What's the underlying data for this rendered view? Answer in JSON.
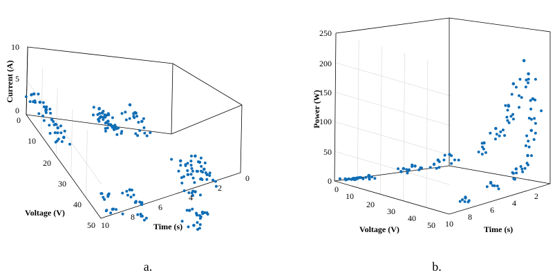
{
  "chart_data": [
    {
      "type": "scatter",
      "panel_label": "a.",
      "xlabel": "Time (s)",
      "ylabel": "Voltage (V)",
      "zlabel": "Current (A)",
      "x_ticks": [
        "10",
        "8",
        "6",
        "4",
        "2",
        "0"
      ],
      "y_ticks": [
        "0",
        "10",
        "20",
        "30",
        "40",
        "50"
      ],
      "z_ticks": [
        "0",
        "5",
        "10"
      ],
      "xlim": [
        0,
        10
      ],
      "ylim": [
        0,
        50
      ],
      "zlim": [
        0,
        10
      ],
      "grid": true,
      "color": "#0f6db5",
      "series": [
        {
          "points": [
            [
              5.0,
              0.0,
              2.3
            ],
            [
              5.0,
              2.0,
              2.3
            ],
            [
              5.0,
              4.0,
              2.3
            ],
            [
              5.0,
              6.0,
              2.3
            ],
            [
              5.0,
              8.0,
              2.3
            ],
            [
              5.0,
              10.0,
              2.3
            ],
            [
              9.5,
              0.0,
              3.2
            ],
            [
              9.5,
              4.0,
              3.2
            ],
            [
              9.5,
              8.0,
              3.2
            ],
            [
              9.5,
              12.0,
              3.1
            ],
            [
              9.5,
              16.0,
              3.1
            ],
            [
              9.5,
              20.0,
              2.9
            ],
            [
              5.0,
              20.0,
              9.0
            ],
            [
              5.0,
              24.0,
              9.0
            ],
            [
              5.0,
              28.0,
              9.0
            ],
            [
              1.5,
              30.0,
              5.5
            ],
            [
              1.5,
              33.0,
              5.5
            ],
            [
              1.5,
              36.0,
              5.4
            ],
            [
              1.5,
              38.0,
              5.2
            ],
            [
              7.0,
              40.0,
              2.0
            ],
            [
              7.0,
              44.0,
              1.4
            ],
            [
              7.0,
              48.0,
              0.6
            ],
            [
              9.0,
              45.0,
              2.2
            ],
            [
              9.0,
              48.0,
              1.0
            ],
            [
              3.5,
              46.0,
              1.8
            ],
            [
              3.5,
              49.0,
              0.5
            ],
            [
              2.5,
              30.0,
              4.5
            ],
            [
              2.5,
              35.0,
              4.0
            ],
            [
              2.5,
              40.0,
              3.0
            ],
            [
              2.5,
              45.0,
              1.5
            ]
          ]
        }
      ]
    },
    {
      "type": "scatter",
      "panel_label": "b.",
      "xlabel": "Time (s)",
      "ylabel": "Voltage (V)",
      "zlabel": "Power (W)",
      "x_ticks": [
        "10",
        "8",
        "6",
        "4",
        "2"
      ],
      "y_ticks": [
        "0",
        "10",
        "20",
        "30",
        "40",
        "50"
      ],
      "z_ticks": [
        "0",
        "50",
        "100",
        "150",
        "200",
        "250"
      ],
      "xlim": [
        0,
        10
      ],
      "ylim": [
        0,
        50
      ],
      "zlim": [
        0,
        250
      ],
      "grid": true,
      "color": "#0f6db5",
      "series": [
        {
          "points": [
            [
              9.0,
              0.0,
              0.0
            ],
            [
              9.0,
              3.0,
              5.0
            ],
            [
              9.0,
              6.0,
              10.0
            ],
            [
              9.0,
              10.0,
              18.0
            ],
            [
              7.0,
              15.0,
              30.0
            ],
            [
              7.0,
              20.0,
              40.0
            ],
            [
              5.0,
              20.0,
              45.0
            ],
            [
              5.0,
              25.0,
              60.0
            ],
            [
              3.0,
              30.0,
              80.0
            ],
            [
              3.0,
              35.0,
              110.0
            ],
            [
              2.5,
              38.0,
              150.0
            ],
            [
              2.5,
              40.0,
              190.0
            ],
            [
              2.0,
              42.0,
              230.0
            ],
            [
              2.0,
              44.0,
              210.0
            ],
            [
              2.0,
              46.0,
              170.0
            ],
            [
              2.5,
              48.0,
              120.0
            ],
            [
              3.0,
              49.0,
              80.0
            ],
            [
              4.0,
              49.0,
              60.0
            ],
            [
              6.0,
              48.0,
              40.0
            ],
            [
              8.0,
              47.0,
              20.0
            ]
          ]
        }
      ]
    }
  ]
}
